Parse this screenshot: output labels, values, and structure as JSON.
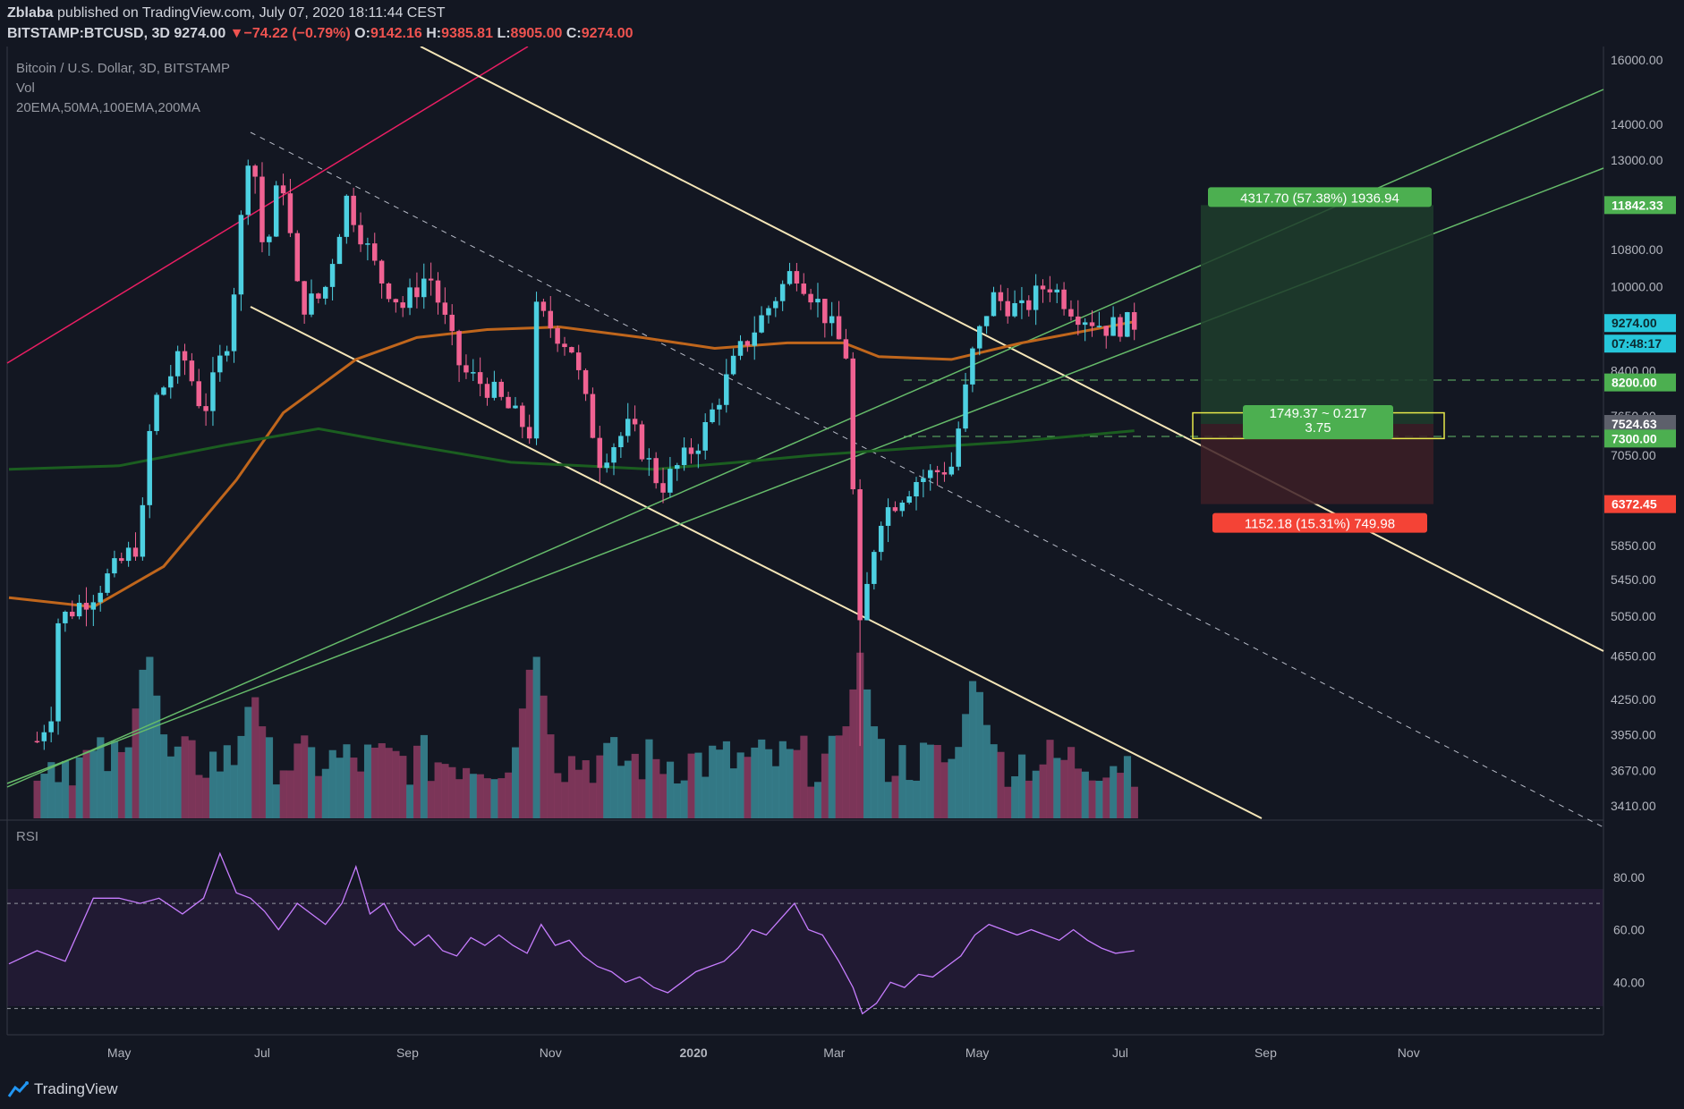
{
  "header": {
    "author": "Zblaba",
    "published_text": "published on TradingView.com, July 07, 2020 18:11:44 CEST",
    "symbol": "BITSTAMP:BTCUSD, 3D",
    "last": "9274.00",
    "arrow": "▼",
    "change": "−74.22 (−0.79%)",
    "o_label": "O:",
    "o_value": "9142.16",
    "h_label": "H:",
    "h_value": "9385.81",
    "l_label": "L:",
    "l_value": "8905.00",
    "c_label": "C:",
    "c_value": "9274.00"
  },
  "legend": {
    "title": "Bitcoin / U.S. Dollar, 3D, BITSTAMP",
    "volume": "Vol",
    "mas": "20EMA,50MA,100EMA,200MA"
  },
  "footer": {
    "brand": "TradingView"
  },
  "colors": {
    "background": "#131722",
    "up": "#4dd0e1",
    "down": "#f06292",
    "ma100": "#c0661c",
    "ma200": "#1b5e20",
    "trendline": "#f5e6b8",
    "green_line": "#66bb6a",
    "pink_line": "#e91e63",
    "rsi": "#c77dff",
    "target_green": "#4caf50",
    "stop_red": "#f44336",
    "highlight": "#26c6da"
  },
  "chart_data": [
    {
      "type": "candlestick",
      "title": "Bitcoin / U.S. Dollar, 3D, BITSTAMP",
      "y_scale": "log",
      "ylim": [
        3250,
        17000
      ],
      "x_ticks": [
        "May",
        "Jul",
        "Sep",
        "Nov",
        "2020",
        "Mar",
        "May",
        "Jul",
        "Sep",
        "Nov"
      ],
      "y_ticks": [
        "16000.00",
        "14000.00",
        "13000.00",
        "10800.00",
        "10000.00",
        "8400.00",
        "7650.00",
        "7050.00",
        "5850.00",
        "5450.00",
        "5050.00",
        "4650.00",
        "4250.00",
        "3950.00",
        "3670.00",
        "3410.00"
      ],
      "price_labels": [
        {
          "text": "11842.33",
          "value": 11842.33,
          "style": "green"
        },
        {
          "text": "9274.00",
          "value": 9274,
          "style": "highlight"
        },
        {
          "text": "07:48:17",
          "value": 8950,
          "style": "highlight"
        },
        {
          "text": "8200.00",
          "value": 8200,
          "style": "green"
        },
        {
          "text": "7524.63",
          "value": 7524.63,
          "style": "gray"
        },
        {
          "text": "7300.00",
          "value": 7300,
          "style": "green"
        },
        {
          "text": "6372.45",
          "value": 6372.45,
          "style": "red"
        }
      ],
      "key_price_path": [
        [
          "2019-03-27",
          3900
        ],
        [
          "2019-04-02",
          4150
        ],
        [
          "2019-04-05",
          5000
        ],
        [
          "2019-04-20",
          5300
        ],
        [
          "2019-05-10",
          5900
        ],
        [
          "2019-05-15",
          7800
        ],
        [
          "2019-05-28",
          8700
        ],
        [
          "2019-06-06",
          7700
        ],
        [
          "2019-06-17",
          9100
        ],
        [
          "2019-06-26",
          13800
        ],
        [
          "2019-07-02",
          10500
        ],
        [
          "2019-07-09",
          12800
        ],
        [
          "2019-07-17",
          9600
        ],
        [
          "2019-07-27",
          9800
        ],
        [
          "2019-08-06",
          12000
        ],
        [
          "2019-08-20",
          10200
        ],
        [
          "2019-08-30",
          9600
        ],
        [
          "2019-09-10",
          10300
        ],
        [
          "2019-09-24",
          8400
        ],
        [
          "2019-10-06",
          8100
        ],
        [
          "2019-10-23",
          7400
        ],
        [
          "2019-10-26",
          9500
        ],
        [
          "2019-11-10",
          8800
        ],
        [
          "2019-11-22",
          7000
        ],
        [
          "2019-12-05",
          7500
        ],
        [
          "2019-12-18",
          6600
        ],
        [
          "2020-01-04",
          7300
        ],
        [
          "2020-01-20",
          8700
        ],
        [
          "2020-02-13",
          10400
        ],
        [
          "2020-02-24",
          9600
        ],
        [
          "2020-03-06",
          8700
        ],
        [
          "2020-03-12",
          4900
        ],
        [
          "2020-03-20",
          6200
        ],
        [
          "2020-04-05",
          6700
        ],
        [
          "2020-04-20",
          6900
        ],
        [
          "2020-04-29",
          8700
        ],
        [
          "2020-05-07",
          9800
        ],
        [
          "2020-05-20",
          9500
        ],
        [
          "2020-05-31",
          10100
        ],
        [
          "2020-06-12",
          9500
        ],
        [
          "2020-06-25",
          9200
        ],
        [
          "2020-07-07",
          9274
        ]
      ],
      "series": [
        {
          "name": "20EMA,50MA,100EMA,200MA",
          "kind": "ma100",
          "points": [
            [
              "2019-03-15",
              5250
            ],
            [
              "2019-04-20",
              5150
            ],
            [
              "2019-05-20",
              5600
            ],
            [
              "2019-06-20",
              6700
            ],
            [
              "2019-07-10",
              7700
            ],
            [
              "2019-08-10",
              8600
            ],
            [
              "2019-09-05",
              9000
            ],
            [
              "2019-10-05",
              9150
            ],
            [
              "2019-11-05",
              9200
            ],
            [
              "2019-12-10",
              9000
            ],
            [
              "2020-01-10",
              8800
            ],
            [
              "2020-02-10",
              8900
            ],
            [
              "2020-03-05",
              8900
            ],
            [
              "2020-03-20",
              8650
            ],
            [
              "2020-04-20",
              8600
            ],
            [
              "2020-05-20",
              8900
            ],
            [
              "2020-07-07",
              9300
            ]
          ]
        },
        {
          "name": "20EMA,50MA,100EMA,200MA",
          "kind": "ma200",
          "points": [
            [
              "2019-03-15",
              6850
            ],
            [
              "2019-05-01",
              6900
            ],
            [
              "2019-06-15",
              7200
            ],
            [
              "2019-07-25",
              7450
            ],
            [
              "2019-08-25",
              7250
            ],
            [
              "2019-10-15",
              6950
            ],
            [
              "2019-12-15",
              6850
            ],
            [
              "2020-01-20",
              6950
            ],
            [
              "2020-02-20",
              7050
            ],
            [
              "2020-04-01",
              7150
            ],
            [
              "2020-05-15",
              7250
            ],
            [
              "2020-07-07",
              7420
            ]
          ]
        }
      ],
      "annotations": {
        "target": {
          "text": "4317.70 (57.38%) 1936.94",
          "price": 11842.33
        },
        "risk_reward": {
          "line1": "1749.37 ~ 0.217",
          "line2": "3.75",
          "entry": 7524.63,
          "zone_top": 7700,
          "zone_bottom": 7300
        },
        "stop": {
          "text": "1152.18 (15.31%) 749.98",
          "price": 6372.45
        },
        "support_levels": [
          8200,
          7300
        ]
      }
    },
    {
      "type": "line",
      "title": "RSI",
      "ylim": [
        20,
        100
      ],
      "y_ticks": [
        "80.00",
        "60.00",
        "40.00"
      ],
      "bands": [
        30,
        70
      ],
      "points": [
        [
          "2019-03-15",
          47
        ],
        [
          "2019-03-27",
          52
        ],
        [
          "2019-04-08",
          48
        ],
        [
          "2019-04-20",
          72
        ],
        [
          "2019-05-01",
          72
        ],
        [
          "2019-05-10",
          70
        ],
        [
          "2019-05-18",
          72
        ],
        [
          "2019-05-28",
          66
        ],
        [
          "2019-06-06",
          72
        ],
        [
          "2019-06-13",
          89
        ],
        [
          "2019-06-20",
          74
        ],
        [
          "2019-06-26",
          72
        ],
        [
          "2019-07-02",
          67
        ],
        [
          "2019-07-08",
          60
        ],
        [
          "2019-07-16",
          70
        ],
        [
          "2019-07-22",
          66
        ],
        [
          "2019-07-28",
          62
        ],
        [
          "2019-08-04",
          70
        ],
        [
          "2019-08-10",
          84
        ],
        [
          "2019-08-16",
          66
        ],
        [
          "2019-08-22",
          70
        ],
        [
          "2019-08-28",
          60
        ],
        [
          "2019-09-04",
          54
        ],
        [
          "2019-09-10",
          58
        ],
        [
          "2019-09-16",
          52
        ],
        [
          "2019-09-22",
          50
        ],
        [
          "2019-09-28",
          57
        ],
        [
          "2019-10-04",
          54
        ],
        [
          "2019-10-10",
          58
        ],
        [
          "2019-10-16",
          54
        ],
        [
          "2019-10-22",
          51
        ],
        [
          "2019-10-28",
          62
        ],
        [
          "2019-11-03",
          54
        ],
        [
          "2019-11-09",
          56
        ],
        [
          "2019-11-15",
          50
        ],
        [
          "2019-11-21",
          46
        ],
        [
          "2019-11-27",
          44
        ],
        [
          "2019-12-03",
          40
        ],
        [
          "2019-12-09",
          42
        ],
        [
          "2019-12-15",
          38
        ],
        [
          "2019-12-21",
          36
        ],
        [
          "2019-12-27",
          40
        ],
        [
          "2020-01-02",
          44
        ],
        [
          "2020-01-08",
          46
        ],
        [
          "2020-01-14",
          48
        ],
        [
          "2020-01-20",
          53
        ],
        [
          "2020-01-26",
          60
        ],
        [
          "2020-02-01",
          58
        ],
        [
          "2020-02-07",
          64
        ],
        [
          "2020-02-13",
          70
        ],
        [
          "2020-02-19",
          60
        ],
        [
          "2020-02-25",
          58
        ],
        [
          "2020-03-03",
          48
        ],
        [
          "2020-03-09",
          38
        ],
        [
          "2020-03-13",
          28
        ],
        [
          "2020-03-19",
          32
        ],
        [
          "2020-03-25",
          40
        ],
        [
          "2020-03-31",
          38
        ],
        [
          "2020-04-06",
          43
        ],
        [
          "2020-04-12",
          42
        ],
        [
          "2020-04-18",
          46
        ],
        [
          "2020-04-24",
          50
        ],
        [
          "2020-04-30",
          58
        ],
        [
          "2020-05-06",
          62
        ],
        [
          "2020-05-12",
          60
        ],
        [
          "2020-05-18",
          58
        ],
        [
          "2020-05-24",
          60
        ],
        [
          "2020-05-30",
          58
        ],
        [
          "2020-06-05",
          56
        ],
        [
          "2020-06-11",
          60
        ],
        [
          "2020-06-17",
          56
        ],
        [
          "2020-06-23",
          53
        ],
        [
          "2020-06-29",
          51
        ],
        [
          "2020-07-07",
          52
        ]
      ]
    }
  ]
}
